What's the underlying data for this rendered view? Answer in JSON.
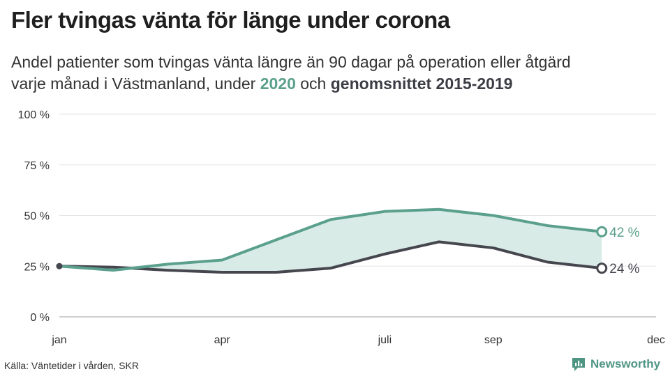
{
  "title": "Fler tvingas vänta för länge under corona",
  "subtitle": {
    "line1": "Andel patienter som tvingas vänta längre än 90 dagar på operation eller åtgärd",
    "line2_prefix": "varje månad i Västmanland, under ",
    "highlight_2020": "2020",
    "middle": " och ",
    "highlight_avg": "genomsnittet 2015-2019"
  },
  "footer": {
    "source": "Källa: Väntetider i vården, SKR",
    "logo_text": "Newsworthy",
    "logo_icon": "bar-chart-icon"
  },
  "colors": {
    "series_2020": "#5aa08c",
    "series_avg": "#46464f",
    "fill": "#d9ebe6",
    "grid": "#e6e6e6"
  },
  "chart_data": {
    "type": "line",
    "x": [
      1,
      2,
      3,
      4,
      5,
      6,
      7,
      8,
      9,
      10,
      11
    ],
    "x_range": [
      1,
      12
    ],
    "x_ticks": [
      {
        "value": 1,
        "label": "jan"
      },
      {
        "value": 4,
        "label": "apr"
      },
      {
        "value": 7,
        "label": "juli"
      },
      {
        "value": 9,
        "label": "sep"
      },
      {
        "value": 12,
        "label": "dec"
      }
    ],
    "ylim": [
      0,
      100
    ],
    "y_ticks": [
      {
        "value": 0,
        "label": "0 %"
      },
      {
        "value": 25,
        "label": "25 %"
      },
      {
        "value": 50,
        "label": "50 %"
      },
      {
        "value": 75,
        "label": "75 %"
      },
      {
        "value": 100,
        "label": "100 %"
      }
    ],
    "series": [
      {
        "name": "2020",
        "values": [
          25,
          23,
          26,
          28,
          38,
          48,
          52,
          53,
          50,
          45,
          42
        ],
        "end_label": "42 %"
      },
      {
        "name": "genomsnittet 2015-2019",
        "values": [
          25,
          24.5,
          23,
          22,
          22,
          24,
          31,
          37,
          34,
          27,
          24
        ],
        "end_label": "24 %"
      }
    ],
    "shaded_between_series": true,
    "grid": true,
    "legend": "in subtitle"
  }
}
